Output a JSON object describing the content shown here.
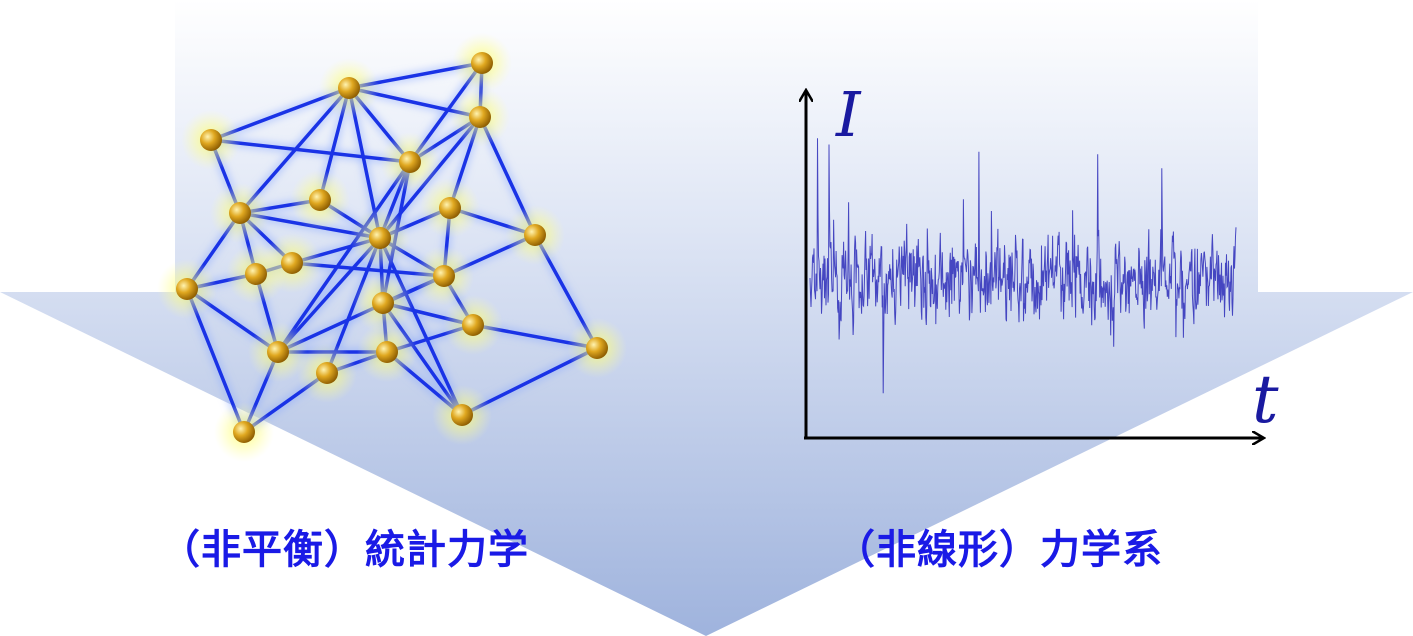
{
  "diagram": {
    "left_panel": {
      "caption": "（非平衡）統計力学",
      "visual": "network-graph"
    },
    "right_panel": {
      "caption": "（非線形）力学系",
      "visual": "time-series",
      "y_axis_label": "I",
      "x_axis_label": "t"
    },
    "colors": {
      "arrow_top": "#ffffff",
      "arrow_bottom": "#9fb3dd",
      "network_edge": "#1a33e6",
      "node": "#d9a020",
      "node_glow": "#ffff66",
      "signal": "#2b2bb8",
      "caption": "#1a1ae6",
      "axis": "#000000"
    }
  }
}
